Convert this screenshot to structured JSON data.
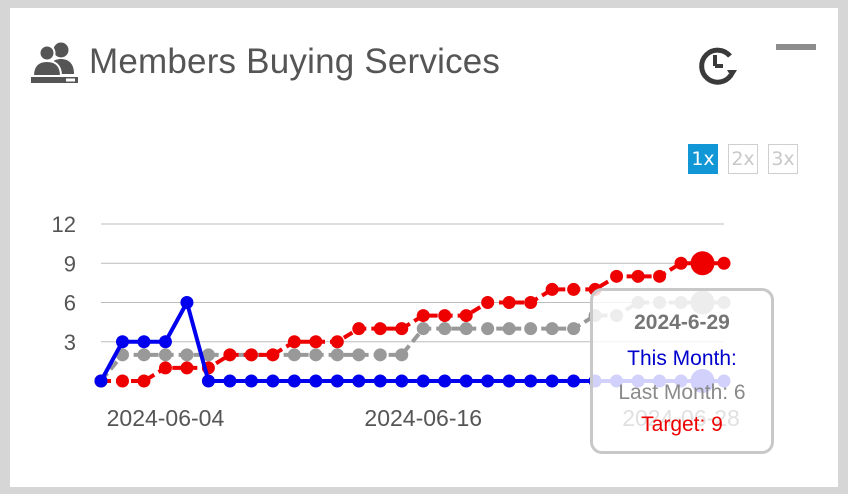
{
  "widget": {
    "title": "Members Buying Services",
    "header_icon": "members-icon",
    "refresh_icon": "refresh-clock-icon",
    "minimize_icon": "minimize-icon"
  },
  "zoom": {
    "options": [
      "1x",
      "2x",
      "3x"
    ],
    "selected": "1x"
  },
  "tooltip": {
    "date": "2024-6-29",
    "this_month": "This Month:",
    "last_month": "Last Month: 6",
    "target": "Target: 9"
  },
  "colors": {
    "this_month": "#0000ee",
    "last_month": "#999999",
    "target": "#ee0000",
    "gridline": "#bdbdbd",
    "zoom_active": "#1196d6"
  },
  "chart_data": {
    "type": "line",
    "x_start": "2024-06-01",
    "x_end": "2024-06-30",
    "x_ticks": [
      "2024-06-04",
      "2024-06-16",
      "2024-06-28"
    ],
    "y_ticks": [
      "3",
      "6",
      "9",
      "12"
    ],
    "ylim": [
      0,
      12
    ],
    "grid": true,
    "highlighted_x": "2024-06-29",
    "series": [
      {
        "key": "this_month",
        "values": [
          0,
          3,
          3,
          3,
          6,
          0,
          0,
          0,
          0,
          0,
          0,
          0,
          0,
          0,
          0,
          0,
          0,
          0,
          0,
          0,
          0,
          0,
          0,
          0,
          0,
          0,
          0,
          0,
          0,
          0
        ],
        "dashed": false
      },
      {
        "key": "last_month",
        "values": [
          0,
          2,
          2,
          2,
          2,
          2,
          2,
          2,
          2,
          2,
          2,
          2,
          2,
          2,
          2,
          4,
          4,
          4,
          4,
          4,
          4,
          4,
          4,
          5,
          5,
          6,
          6,
          6,
          6,
          6
        ],
        "dashed": true
      },
      {
        "key": "target",
        "values": [
          0,
          0,
          0,
          1,
          1,
          1,
          2,
          2,
          2,
          3,
          3,
          3,
          4,
          4,
          4,
          5,
          5,
          5,
          6,
          6,
          6,
          7,
          7,
          7,
          8,
          8,
          8,
          9,
          9,
          9
        ],
        "dashed": true
      }
    ]
  }
}
